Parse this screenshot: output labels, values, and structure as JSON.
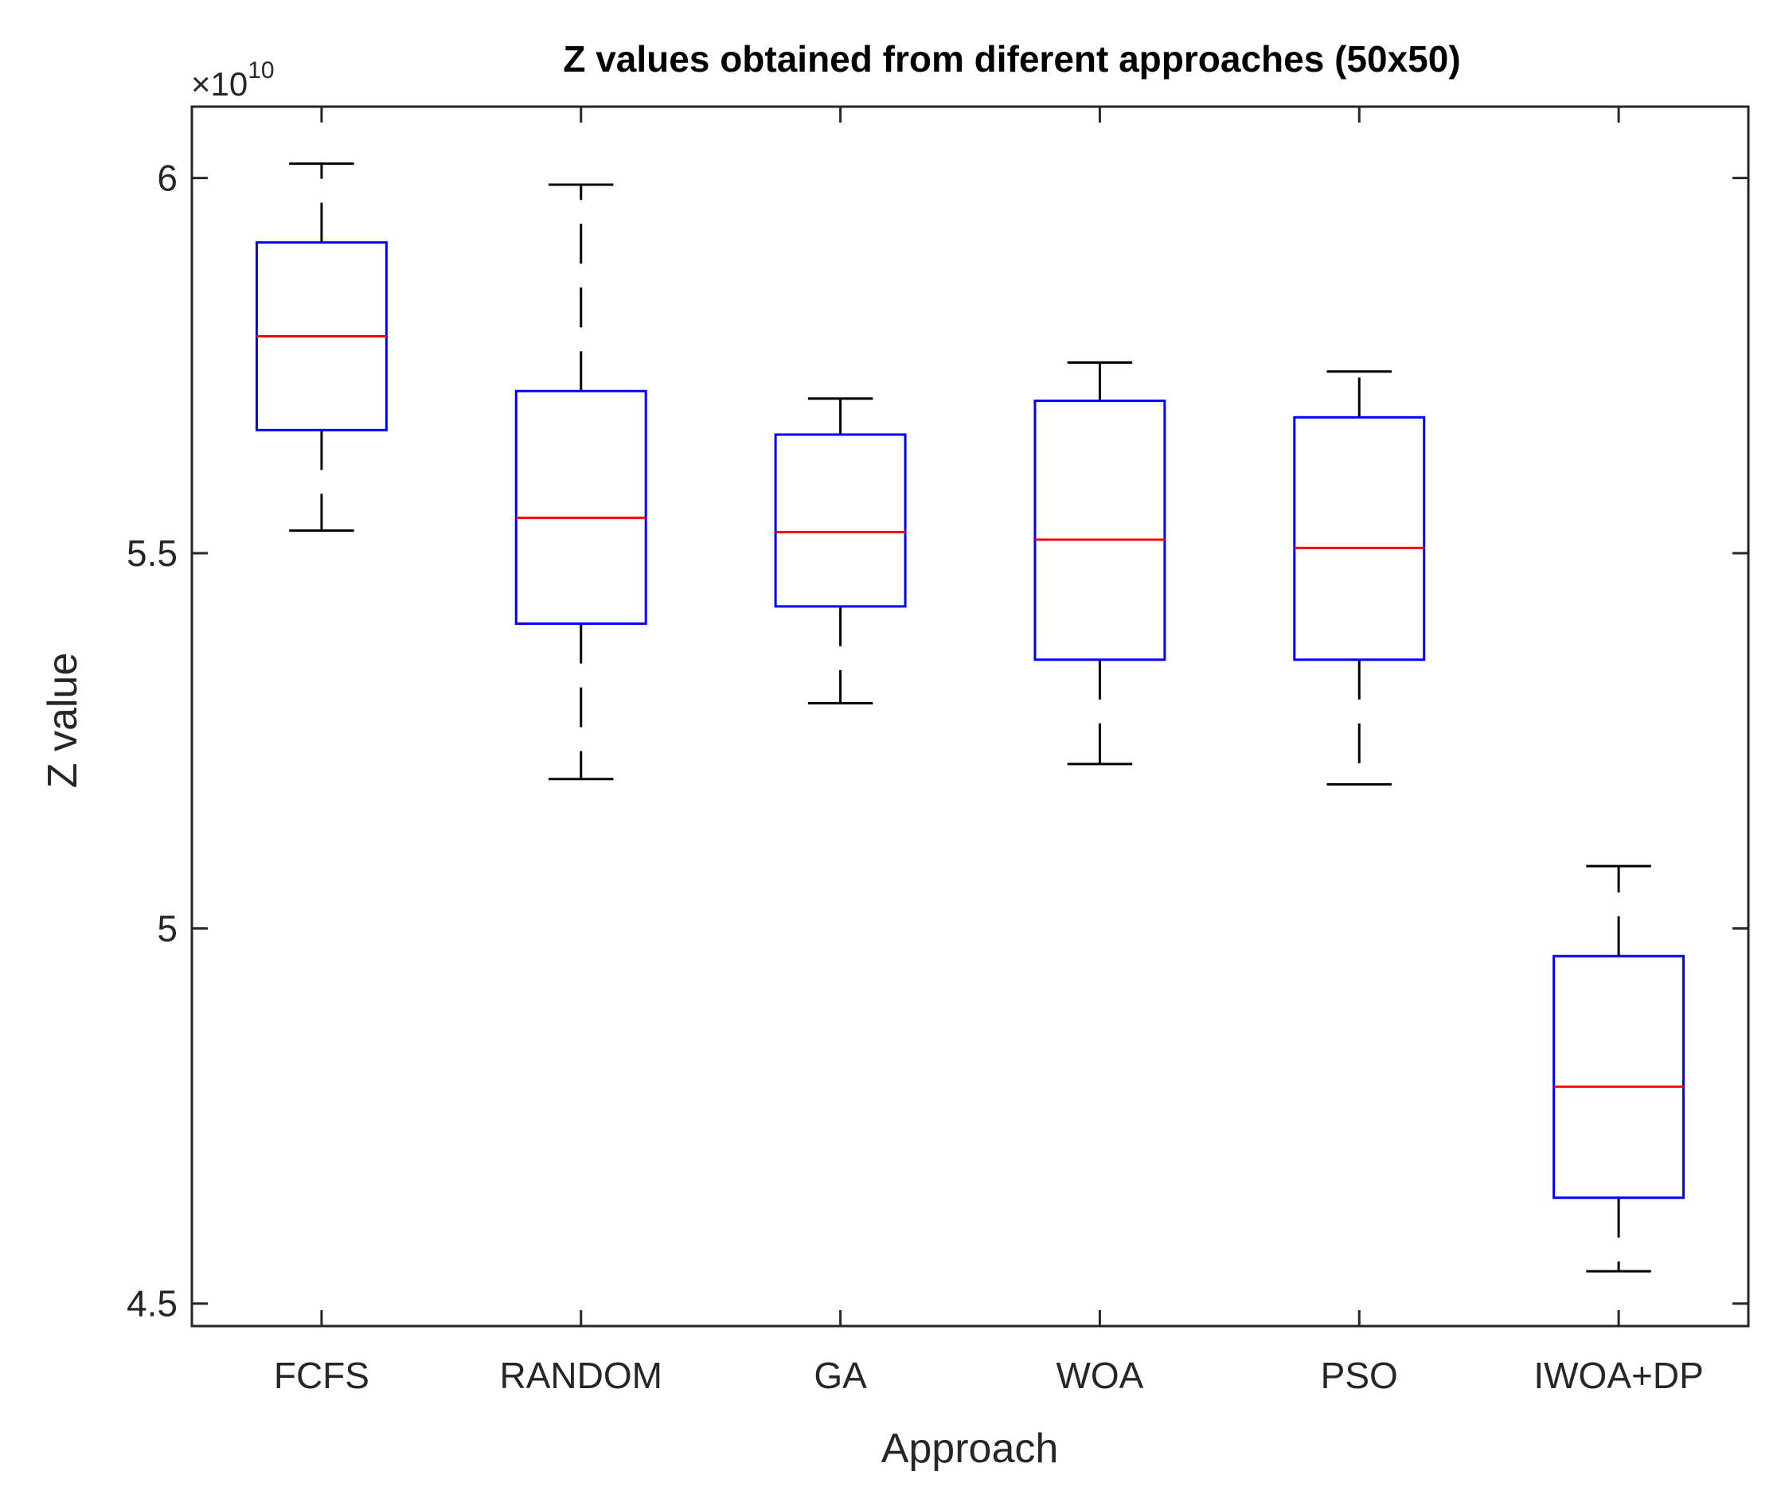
{
  "chart_data": {
    "type": "boxplot",
    "title": "Z values obtained from diferent approaches (50x50)",
    "xlabel": "Approach",
    "ylabel": "Z value",
    "y_exponent_label": "×10",
    "y_exponent_power": "10",
    "ylim": [
      4.47,
      6.095
    ],
    "yticks": [
      4.5,
      5,
      5.5,
      6
    ],
    "ytick_labels": [
      "4.5",
      "5",
      "5.5",
      "6"
    ],
    "categories": [
      "FCFS",
      "RANDOM",
      "GA",
      "WOA",
      "PSO",
      "IWOA+DP"
    ],
    "boxes": [
      {
        "name": "FCFS",
        "whisker_low": 5.53,
        "q1": 5.664,
        "median": 5.789,
        "q3": 5.914,
        "whisker_high": 6.019
      },
      {
        "name": "RANDOM",
        "whisker_low": 5.199,
        "q1": 5.406,
        "median": 5.547,
        "q3": 5.716,
        "whisker_high": 5.991
      },
      {
        "name": "GA",
        "whisker_low": 5.3,
        "q1": 5.429,
        "median": 5.528,
        "q3": 5.658,
        "whisker_high": 5.706
      },
      {
        "name": "WOA",
        "whisker_low": 5.219,
        "q1": 5.358,
        "median": 5.518,
        "q3": 5.703,
        "whisker_high": 5.754
      },
      {
        "name": "PSO",
        "whisker_low": 5.192,
        "q1": 5.358,
        "median": 5.507,
        "q3": 5.681,
        "whisker_high": 5.742
      },
      {
        "name": "IWOA+DP",
        "whisker_low": 4.543,
        "q1": 4.641,
        "median": 4.789,
        "q3": 4.963,
        "whisker_high": 5.083
      }
    ],
    "colors": {
      "box": "#0000ff",
      "median": "#ff0000",
      "whisker": "#000000",
      "axis": "#262626"
    },
    "grid": false,
    "legend": "none"
  }
}
